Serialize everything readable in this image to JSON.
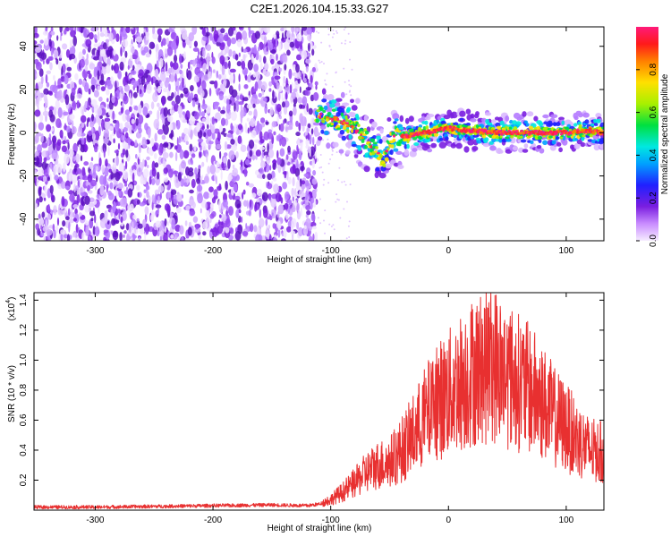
{
  "title": "C2E1.2026.104.15.33.G27",
  "colors": {
    "snr_line": "#e83030",
    "axis": "#000000",
    "noise_purple": "#7a1ee0",
    "trace_core": "#ff2a2a"
  },
  "chart_data": [
    {
      "type": "heatmap",
      "name": "spectrogram",
      "xlabel": "Height of straight line (km)",
      "ylabel": "Frequency (Hz)",
      "xlim": [
        -352,
        132
      ],
      "ylim": [
        -50,
        49
      ],
      "xticks": [
        -300,
        -200,
        -100,
        0,
        100
      ],
      "xtick_labels": [
        "-300",
        "-200",
        "-100",
        "0",
        "100"
      ],
      "yticks": [
        -40,
        -20,
        0,
        20,
        40
      ],
      "ytick_labels": [
        "-40",
        "-20",
        "0",
        "20",
        "40"
      ],
      "noise_region_x": [
        -352,
        -112
      ],
      "signal_trace": {
        "x": [
          -112,
          -100,
          -90,
          -80,
          -70,
          -60,
          -55,
          -50,
          -45,
          -40,
          -30,
          -20,
          -10,
          0,
          20,
          40,
          60,
          80,
          100,
          120,
          132
        ],
        "y": [
          8,
          7,
          5,
          2,
          -3,
          -10,
          -13,
          -5,
          -1,
          -2,
          -1,
          0,
          1,
          2,
          1,
          0,
          0,
          0,
          0,
          1,
          0
        ]
      },
      "colorbar": {
        "label": "Normalized spectral amplitude",
        "range": [
          0,
          1
        ],
        "ticks": [
          0.0,
          0.2,
          0.4,
          0.6,
          0.8
        ],
        "tick_labels": [
          "0.0",
          "0.2",
          "0.4",
          "0.6",
          "0.8"
        ]
      },
      "grid": false
    },
    {
      "type": "line",
      "name": "snr",
      "xlabel": "Height of straight line (km)",
      "ylabel": "SNR (10 * v/v)",
      "y_scale_label": "(x10",
      "y_scale_exp": "4",
      "xlim": [
        -352,
        132
      ],
      "ylim": [
        0,
        1.45
      ],
      "xticks": [
        -300,
        -200,
        -100,
        0,
        100
      ],
      "xtick_labels": [
        "-300",
        "-200",
        "-100",
        "0",
        "100"
      ],
      "yticks": [
        0.2,
        0.4,
        0.6,
        0.8,
        1.0,
        1.2,
        1.4
      ],
      "ytick_labels": [
        "0.2",
        "0.4",
        "0.6",
        "0.8",
        "1.0",
        "1.2",
        "1.4"
      ],
      "series": [
        {
          "name": "SNR",
          "x": [
            -352,
            -300,
            -250,
            -200,
            -150,
            -120,
            -110,
            -100,
            -90,
            -80,
            -70,
            -60,
            -50,
            -40,
            -30,
            -20,
            -10,
            0,
            10,
            20,
            30,
            40,
            50,
            60,
            70,
            80,
            90,
            100,
            110,
            120,
            132
          ],
          "y": [
            0.02,
            0.02,
            0.025,
            0.03,
            0.035,
            0.03,
            0.04,
            0.07,
            0.12,
            0.18,
            0.25,
            0.3,
            0.32,
            0.4,
            0.5,
            0.62,
            0.72,
            0.78,
            0.85,
            0.92,
            0.95,
            0.97,
            0.9,
            0.85,
            0.8,
            0.72,
            0.62,
            0.55,
            0.47,
            0.4,
            0.38
          ]
        }
      ],
      "grid": false
    }
  ]
}
